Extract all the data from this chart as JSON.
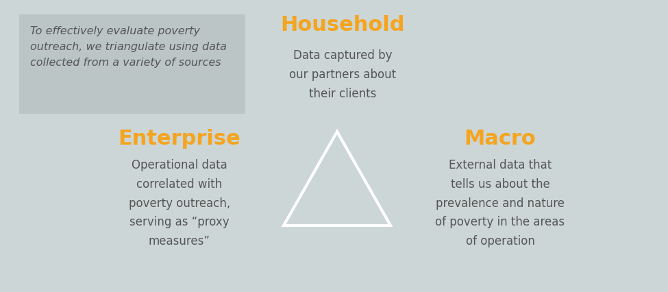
{
  "bg_color": "#ccd6d6",
  "text_box_color": "#bbc5c5",
  "orange_color": "#f5a41f",
  "dark_text_color": "#555555",
  "title_italic_text": "To effectively evaluate poverty\noutreach, we triangulate using data\ncollected from a variety of sources",
  "household_title": "Household",
  "household_body": "Data captured by\nour partners about\ntheir clients",
  "enterprise_title": "Enterprise",
  "enterprise_body": "Operational data\ncorrelated with\npoverty outreach,\nserving as “proxy\nmeasures”",
  "macro_title": "Macro",
  "macro_body": "External data that\ntells us about the\nprevalence and nature\nof poverty in the areas\nof operation",
  "triangle_color": "#ffffff",
  "triangle_linewidth": 3.0,
  "fig_width": 9.75,
  "fig_height": 4.27,
  "dpi": 100
}
